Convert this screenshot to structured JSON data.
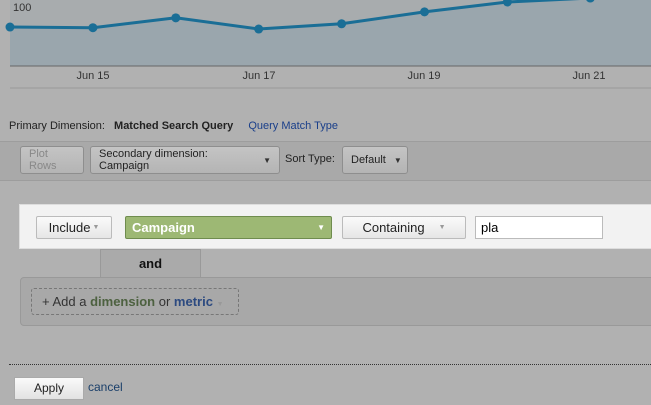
{
  "chart_data": {
    "type": "area",
    "x": [
      "Jun 14",
      "Jun 15",
      "Jun 16",
      "Jun 17",
      "Jun 18",
      "Jun 19",
      "Jun 20",
      "Jun 21"
    ],
    "x_tick_labels": [
      "Jun 15",
      "Jun 17",
      "Jun 19",
      "Jun 21"
    ],
    "y_tick_labels": [
      "100"
    ],
    "series": [
      {
        "values": [
          59,
          58,
          73,
          56,
          64,
          82,
          97,
          103
        ]
      }
    ],
    "ylim": [
      0,
      100
    ],
    "colors": {
      "line": "#1a6e96",
      "fill": "#9aa6ad"
    }
  },
  "dimension": {
    "label": "Primary Dimension:",
    "active": "Matched Search Query",
    "link": "Query Match Type"
  },
  "toolbar": {
    "plot_rows": "Plot Rows",
    "secondary": "Secondary dimension: Campaign",
    "sort_label": "Sort Type:",
    "sort_value": "Default"
  },
  "filter": {
    "include": "Include",
    "dimension": "Campaign",
    "match": "Containing",
    "value": "pla",
    "and_tab": "and",
    "add_prefix": "+ Add a",
    "add_dimension": "dimension",
    "add_or": "or",
    "add_metric": "metric"
  },
  "footer": {
    "apply": "Apply",
    "cancel": "cancel"
  }
}
